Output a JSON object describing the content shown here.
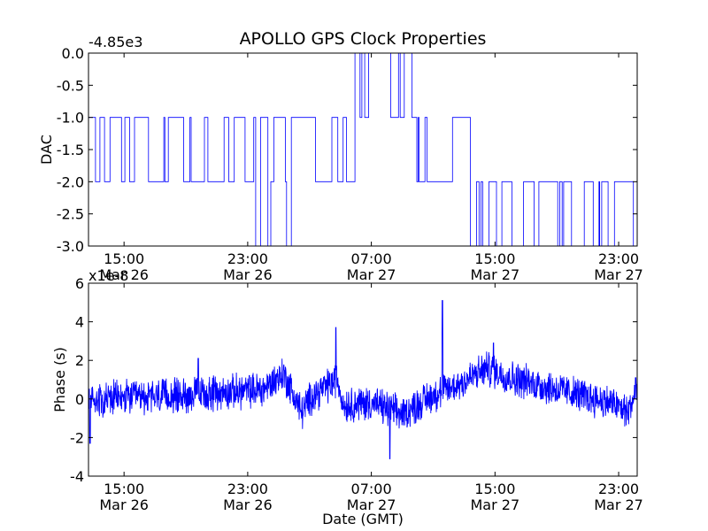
{
  "title": "APOLLO GPS Clock Properties",
  "x_ticks": [
    {
      "t": 15,
      "line1": "15:00",
      "line2": "Mar 26"
    },
    {
      "t": 23,
      "line1": "23:00",
      "line2": "Mar 26"
    },
    {
      "t": 31,
      "line1": "07:00",
      "line2": "Mar 27"
    },
    {
      "t": 39,
      "line1": "15:00",
      "line2": "Mar 27"
    },
    {
      "t": 47,
      "line1": "23:00",
      "line2": "Mar 27"
    }
  ],
  "chart_data": [
    {
      "type": "line",
      "name": "dac",
      "title": "APOLLO GPS Clock Properties",
      "ylabel": "DAC",
      "offset_label": "-4.85e3",
      "xlim": [
        12.7,
        48.2
      ],
      "ylim": [
        -3.0,
        0.0
      ],
      "yticks": [
        0.0,
        -0.5,
        -1.0,
        -1.5,
        -2.0,
        -2.5,
        -3.0
      ],
      "ytick_labels": [
        "0.0",
        "-0.5",
        "-1.0",
        "-1.5",
        "-2.0",
        "-2.5",
        "-3.0"
      ],
      "color": "#0000ff",
      "segments": [
        {
          "from": 12.7,
          "to": 20.0,
          "levels": [
            -1,
            -2
          ]
        },
        {
          "from": 20.0,
          "to": 23.0,
          "levels": [
            -1,
            -2
          ]
        },
        {
          "from": 23.0,
          "to": 26.5,
          "levels": [
            -2,
            -3,
            -1
          ]
        },
        {
          "from": 26.5,
          "to": 29.5,
          "levels": [
            -1,
            -2
          ]
        },
        {
          "from": 29.5,
          "to": 33.2,
          "levels": [
            -1,
            0
          ]
        },
        {
          "from": 33.2,
          "to": 37.0,
          "levels": [
            -1,
            -2
          ]
        },
        {
          "from": 37.0,
          "to": 48.2,
          "levels": [
            -2,
            -3
          ]
        }
      ]
    },
    {
      "type": "line",
      "name": "phase",
      "ylabel": "Phase (s)",
      "xlabel": "Date (GMT)",
      "offset_label": "x1e-8",
      "xlim": [
        12.7,
        48.2
      ],
      "ylim": [
        -4,
        6
      ],
      "yticks": [
        6,
        4,
        2,
        0,
        -2,
        -4
      ],
      "ytick_labels": [
        "6",
        "4",
        "2",
        "0",
        "-2",
        "-4"
      ],
      "color": "#0000ff",
      "trend": [
        {
          "t": 12.7,
          "v": 0.0
        },
        {
          "t": 17.0,
          "v": 0.1
        },
        {
          "t": 21.0,
          "v": 0.3
        },
        {
          "t": 24.0,
          "v": 0.5
        },
        {
          "t": 25.3,
          "v": 1.3
        },
        {
          "t": 25.8,
          "v": 0.5
        },
        {
          "t": 26.5,
          "v": -0.7
        },
        {
          "t": 27.2,
          "v": 0.2
        },
        {
          "t": 28.8,
          "v": 1.0
        },
        {
          "t": 29.2,
          "v": -0.3
        },
        {
          "t": 31.0,
          "v": -0.2
        },
        {
          "t": 33.0,
          "v": -0.8
        },
        {
          "t": 35.0,
          "v": 0.2
        },
        {
          "t": 36.5,
          "v": 0.7
        },
        {
          "t": 38.5,
          "v": 1.6
        },
        {
          "t": 40.0,
          "v": 1.1
        },
        {
          "t": 43.0,
          "v": 0.5
        },
        {
          "t": 46.5,
          "v": -0.2
        },
        {
          "t": 47.6,
          "v": -0.7
        },
        {
          "t": 48.2,
          "v": 0.5
        }
      ],
      "spikes": [
        {
          "t": 12.8,
          "v": -2.3
        },
        {
          "t": 19.8,
          "v": 2.1
        },
        {
          "t": 28.7,
          "v": 3.7
        },
        {
          "t": 32.2,
          "v": -3.1
        },
        {
          "t": 35.6,
          "v": 5.1
        },
        {
          "t": 38.9,
          "v": 2.9
        },
        {
          "t": 48.1,
          "v": 1.1
        }
      ]
    }
  ]
}
